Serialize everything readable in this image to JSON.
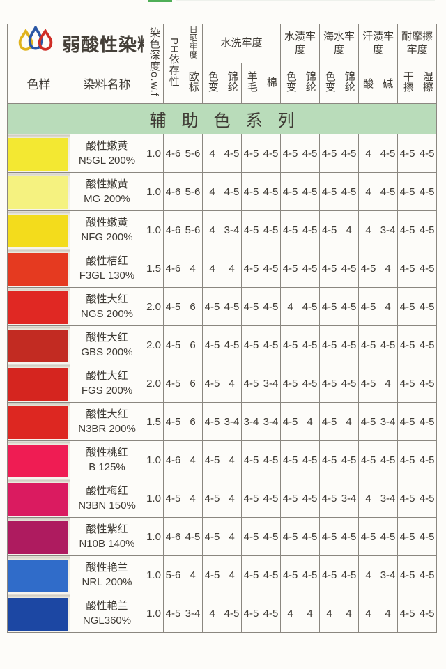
{
  "page": {
    "brand_title": "弱酸性染料",
    "series_banner": "辅助色系列",
    "banner_bg": "#b9dcba",
    "top_tick_color": "#4fae57",
    "logo_drop_colors": {
      "yellow": "#e0b31e",
      "blue": "#2b57a5",
      "red": "#cf2d26"
    }
  },
  "header": {
    "col_sample": "色样",
    "col_name": "染料名称",
    "col_depth": "染色深度o.w.f",
    "col_ph": "PH依存性",
    "col_light": "日晒牢度",
    "col_light_sub": "欧标",
    "groups": [
      {
        "label": "水洗牢度",
        "subs": [
          "色变",
          "锦纶",
          "羊毛",
          "棉"
        ]
      },
      {
        "label": "水渍牢度",
        "subs": [
          "色变",
          "锦纶"
        ]
      },
      {
        "label": "海水牢度",
        "subs": [
          "色变",
          "锦纶"
        ]
      },
      {
        "label": "汗渍牢度",
        "subs": [
          "酸",
          "碱"
        ]
      },
      {
        "label": "耐摩擦牢度",
        "subs": [
          "干擦",
          "湿擦"
        ]
      }
    ]
  },
  "rows": [
    {
      "name": "酸性嫩黄",
      "code": "N5GL 200%",
      "swatch": "#f3e832",
      "values": [
        "1.0",
        "4-6",
        "5-6",
        "4",
        "4-5",
        "4-5",
        "4-5",
        "4-5",
        "4-5",
        "4-5",
        "4-5",
        "4",
        "4-5",
        "4-5",
        "4-5"
      ]
    },
    {
      "name": "酸性嫩黄",
      "code": "MG 200%",
      "swatch": "#f5f280",
      "values": [
        "1.0",
        "4-6",
        "5-6",
        "4",
        "4-5",
        "4-5",
        "4-5",
        "4-5",
        "4-5",
        "4-5",
        "4-5",
        "4",
        "4-5",
        "4-5",
        "4-5"
      ]
    },
    {
      "name": "酸性嫩黄",
      "code": "NFG 200%",
      "swatch": "#f3dc1c",
      "values": [
        "1.0",
        "4-6",
        "5-6",
        "4",
        "3-4",
        "4-5",
        "4-5",
        "4-5",
        "4-5",
        "4-5",
        "4",
        "4",
        "3-4",
        "4-5",
        "4-5"
      ]
    },
    {
      "name": "酸性桔红",
      "code": "F3GL 130%",
      "swatch": "#e53a20",
      "values": [
        "1.5",
        "4-6",
        "4",
        "4",
        "4",
        "4-5",
        "4-5",
        "4-5",
        "4-5",
        "4-5",
        "4-5",
        "4-5",
        "4",
        "4-5",
        "4-5"
      ]
    },
    {
      "name": "酸性大红",
      "code": "NGS 200%",
      "swatch": "#e02823",
      "values": [
        "2.0",
        "4-5",
        "6",
        "4-5",
        "4-5",
        "4-5",
        "4-5",
        "4",
        "4-5",
        "4-5",
        "4-5",
        "4-5",
        "4",
        "4-5",
        "4-5"
      ]
    },
    {
      "name": "酸性大红",
      "code": "GBS 200%",
      "swatch": "#c22b22",
      "values": [
        "2.0",
        "4-5",
        "6",
        "4-5",
        "4-5",
        "4-5",
        "4-5",
        "4-5",
        "4-5",
        "4-5",
        "4-5",
        "4-5",
        "4-5",
        "4-5",
        "4-5"
      ]
    },
    {
      "name": "酸性大红",
      "code": "FGS 200%",
      "swatch": "#d5251f",
      "values": [
        "2.0",
        "4-5",
        "6",
        "4-5",
        "4",
        "4-5",
        "3-4",
        "4-5",
        "4-5",
        "4-5",
        "4-5",
        "4-5",
        "4",
        "4-5",
        "4-5"
      ]
    },
    {
      "name": "酸性大红",
      "code": "N3BR 200%",
      "swatch": "#dd2721",
      "values": [
        "1.5",
        "4-5",
        "6",
        "4-5",
        "3-4",
        "3-4",
        "3-4",
        "4-5",
        "4",
        "4-5",
        "4",
        "4-5",
        "3-4",
        "4-5",
        "4-5"
      ]
    },
    {
      "name": "酸性桃红",
      "code": "B 125%",
      "swatch": "#ef1c53",
      "values": [
        "1.0",
        "4-6",
        "4",
        "4-5",
        "4",
        "4-5",
        "4-5",
        "4-5",
        "4-5",
        "4-5",
        "4-5",
        "4-5",
        "4-5",
        "4-5",
        "4-5"
      ]
    },
    {
      "name": "酸性梅红",
      "code": "N3BN 150%",
      "swatch": "#da1b60",
      "values": [
        "1.0",
        "4-5",
        "4",
        "4-5",
        "4",
        "4-5",
        "4-5",
        "4-5",
        "4-5",
        "4-5",
        "3-4",
        "4",
        "3-4",
        "4-5",
        "4-5"
      ]
    },
    {
      "name": "酸性紫红",
      "code": "N10B 140%",
      "swatch": "#ae1b5f",
      "values": [
        "1.0",
        "4-6",
        "4-5",
        "4-5",
        "4",
        "4-5",
        "4-5",
        "4-5",
        "4-5",
        "4-5",
        "4-5",
        "4-5",
        "4-5",
        "4-5",
        "4-5"
      ]
    },
    {
      "name": "酸性艳兰",
      "code": "NRL 200%",
      "swatch": "#306cc9",
      "values": [
        "1.0",
        "5-6",
        "4",
        "4-5",
        "4",
        "4-5",
        "4-5",
        "4-5",
        "4-5",
        "4-5",
        "4-5",
        "4",
        "3-4",
        "4-5",
        "4-5"
      ]
    },
    {
      "name": "酸性艳兰",
      "code": "NGL360%",
      "swatch": "#1c47a3",
      "values": [
        "1.0",
        "4-5",
        "3-4",
        "4",
        "4-5",
        "4-5",
        "4-5",
        "4",
        "4",
        "4",
        "4",
        "4",
        "4",
        "4-5",
        "4-5"
      ]
    }
  ]
}
